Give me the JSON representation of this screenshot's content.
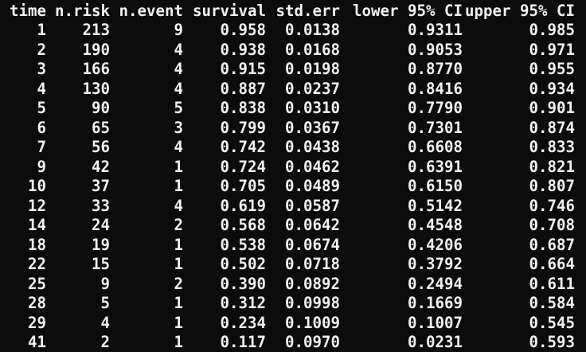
{
  "table": {
    "headers": [
      "time",
      "n.risk",
      "n.event",
      "survival",
      "std.err",
      "lower 95% CI",
      "upper 95% CI"
    ],
    "rows": [
      [
        "1",
        "213",
        "9",
        "0.958",
        "0.0138",
        "0.9311",
        "0.985"
      ],
      [
        "2",
        "190",
        "4",
        "0.938",
        "0.0168",
        "0.9053",
        "0.971"
      ],
      [
        "3",
        "166",
        "4",
        "0.915",
        "0.0198",
        "0.8770",
        "0.955"
      ],
      [
        "4",
        "130",
        "4",
        "0.887",
        "0.0237",
        "0.8416",
        "0.934"
      ],
      [
        "5",
        "90",
        "5",
        "0.838",
        "0.0310",
        "0.7790",
        "0.901"
      ],
      [
        "6",
        "65",
        "3",
        "0.799",
        "0.0367",
        "0.7301",
        "0.874"
      ],
      [
        "7",
        "56",
        "4",
        "0.742",
        "0.0438",
        "0.6608",
        "0.833"
      ],
      [
        "9",
        "42",
        "1",
        "0.724",
        "0.0462",
        "0.6391",
        "0.821"
      ],
      [
        "10",
        "37",
        "1",
        "0.705",
        "0.0489",
        "0.6150",
        "0.807"
      ],
      [
        "12",
        "33",
        "4",
        "0.619",
        "0.0587",
        "0.5142",
        "0.746"
      ],
      [
        "14",
        "24",
        "2",
        "0.568",
        "0.0642",
        "0.4548",
        "0.708"
      ],
      [
        "18",
        "19",
        "1",
        "0.538",
        "0.0674",
        "0.4206",
        "0.687"
      ],
      [
        "22",
        "15",
        "1",
        "0.502",
        "0.0718",
        "0.3792",
        "0.664"
      ],
      [
        "25",
        "9",
        "2",
        "0.390",
        "0.0892",
        "0.2494",
        "0.611"
      ],
      [
        "28",
        "5",
        "1",
        "0.312",
        "0.0998",
        "0.1669",
        "0.584"
      ],
      [
        "29",
        "4",
        "1",
        "0.234",
        "0.1009",
        "0.1007",
        "0.545"
      ],
      [
        "41",
        "2",
        "1",
        "0.117",
        "0.0970",
        "0.0231",
        "0.593"
      ]
    ]
  },
  "colors": {
    "background": "#0c0c0c",
    "text": "#f2f2f2"
  }
}
